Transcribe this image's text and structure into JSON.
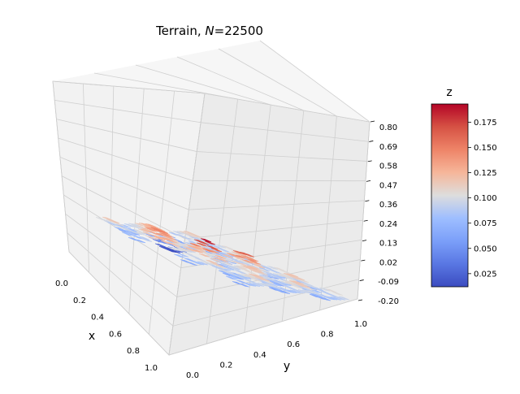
{
  "chart_data": {
    "type": "surface",
    "title_prefix": "Terrain, ",
    "title_var": "N",
    "title_suffix": "=22500",
    "xlabel": "x",
    "ylabel": "y",
    "colorbar_label": "z",
    "x_ticks": [
      "0.0",
      "0.2",
      "0.4",
      "0.6",
      "0.8",
      "1.0"
    ],
    "y_ticks": [
      "0.0",
      "0.2",
      "0.4",
      "0.6",
      "0.8",
      "1.0"
    ],
    "z_ticks": [
      "-0.20",
      "-0.09",
      "0.02",
      "0.13",
      "0.24",
      "0.36",
      "0.47",
      "0.58",
      "0.69",
      "0.80"
    ],
    "colorbar_ticks": [
      "0.025",
      "0.050",
      "0.075",
      "0.100",
      "0.125",
      "0.150",
      "0.175"
    ],
    "colorbar_range": [
      0.012,
      0.193
    ],
    "xlim": [
      0,
      1
    ],
    "ylim": [
      0,
      1
    ],
    "zlim": [
      -0.2,
      0.8
    ],
    "colormap": "coolwarm",
    "grid": true
  }
}
